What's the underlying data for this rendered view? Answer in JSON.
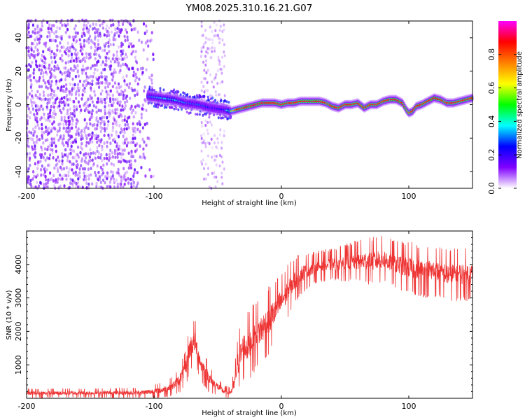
{
  "title": "YM08.2025.310.16.21.G07",
  "chart_data": [
    {
      "type": "heatmap",
      "xlabel": "Height of straight line (km)",
      "ylabel": "Frequency (Hz)",
      "xlim": [
        -200,
        150
      ],
      "ylim": [
        -50,
        50
      ],
      "xticks": [
        -200,
        -100,
        0,
        100
      ],
      "yticks": [
        -40,
        -20,
        0,
        20,
        40
      ],
      "colorbar": {
        "label": "Normalized spectral amplitude",
        "range": [
          0,
          1
        ],
        "ticks": [
          0.0,
          0.2,
          0.4,
          0.6,
          0.8
        ],
        "tick_labels": [
          "0.0",
          "0.2",
          "0.4",
          "0.6",
          "0.8"
        ],
        "colormap": [
          "#ffffff",
          "#8000ff",
          "#0000ff",
          "#00ffff",
          "#00ff00",
          "#ffff00",
          "#ff8000",
          "#ff0000",
          "#ff00ff"
        ]
      },
      "noise_region_km": [
        -200,
        -100
      ],
      "noise_band_km": [
        -63,
        -45
      ],
      "signal_track": {
        "x": [
          -105,
          -95,
          -85,
          -75,
          -65,
          -55,
          -45,
          -40,
          -35,
          -30,
          -25,
          -20,
          -15,
          -10,
          -5,
          0,
          5,
          10,
          15,
          20,
          25,
          30,
          35,
          40,
          45,
          50,
          55,
          60,
          65,
          70,
          75,
          80,
          85,
          90,
          95,
          98,
          100,
          103,
          106,
          110,
          115,
          120,
          125,
          130,
          135,
          140,
          145,
          150
        ],
        "freq": [
          5,
          4,
          3,
          1,
          0,
          -2,
          -3,
          -4,
          -3,
          -2,
          -1,
          0,
          1,
          1,
          1,
          0,
          1,
          1,
          2,
          2,
          2,
          2,
          1,
          -1,
          -2,
          0,
          0,
          1,
          -2,
          0,
          0,
          2,
          3,
          3,
          1,
          -3,
          -5,
          -4,
          -1,
          0,
          2,
          4,
          3,
          1,
          1,
          2,
          3,
          4
        ],
        "amplitude": [
          0.3,
          0.35,
          0.4,
          0.3,
          0.3,
          0.25,
          0.25,
          0.55,
          0.85,
          0.85,
          0.9,
          0.9,
          0.9,
          0.85,
          0.85,
          0.85,
          0.85,
          0.85,
          0.85,
          0.85,
          0.9,
          0.85,
          0.85,
          0.85,
          0.85,
          0.85,
          0.85,
          0.85,
          0.85,
          0.85,
          0.85,
          0.85,
          0.85,
          0.9,
          0.85,
          0.85,
          0.8,
          0.85,
          0.85,
          0.85,
          0.85,
          0.9,
          0.85,
          0.85,
          0.85,
          0.85,
          0.85,
          0.85
        ]
      }
    },
    {
      "type": "line",
      "xlabel": "Height of straight line (km)",
      "ylabel": "SNR (10 * v/v)",
      "xlim": [
        -200,
        150
      ],
      "ylim": [
        0,
        5000
      ],
      "xticks": [
        -200,
        -100,
        0,
        100
      ],
      "yticks": [
        1000,
        2000,
        3000,
        4000
      ],
      "color": "#ee3333",
      "series": [
        {
          "name": "SNR",
          "x": [
            -200,
            -150,
            -110,
            -100,
            -90,
            -85,
            -80,
            -75,
            -72,
            -68,
            -63,
            -58,
            -55,
            -50,
            -45,
            -40,
            -37,
            -35,
            -33,
            -30,
            -25,
            -20,
            -15,
            -10,
            -5,
            0,
            5,
            10,
            15,
            20,
            25,
            30,
            40,
            50,
            60,
            70,
            80,
            90,
            100,
            110,
            120,
            130,
            140,
            150
          ],
          "y": [
            150,
            160,
            170,
            200,
            280,
            380,
            550,
            900,
            1500,
            1700,
            1000,
            700,
            500,
            350,
            200,
            170,
            400,
            900,
            1200,
            1500,
            1600,
            1900,
            2100,
            2300,
            2600,
            2900,
            3200,
            3500,
            3700,
            3800,
            3900,
            3950,
            4000,
            4050,
            4100,
            4100,
            4150,
            4000,
            3900,
            3800,
            3800,
            3700,
            3700,
            3700
          ],
          "noise": [
            90,
            90,
            100,
            140,
            160,
            180,
            250,
            350,
            500,
            450,
            350,
            300,
            250,
            160,
            120,
            100,
            300,
            500,
            600,
            650,
            650,
            650,
            650,
            650,
            600,
            550,
            500,
            450,
            400,
            350,
            300,
            300,
            300,
            350,
            400,
            450,
            450,
            450,
            500,
            500,
            500,
            500,
            500,
            500
          ]
        }
      ]
    }
  ]
}
